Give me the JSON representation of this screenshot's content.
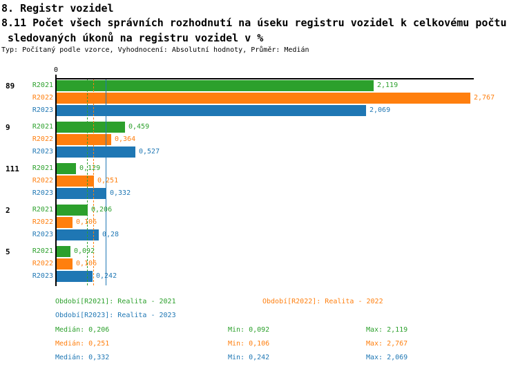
{
  "header": {
    "line1": "8. Registr vozidel",
    "line2": "8.11 Počet všech správních rozhodnutí na úseku registru vozidel k celkovému počtu",
    "line3": " sledovaných úkonů na registru vozidel v %",
    "meta": "Typ: Počítaný podle vzorce, Vyhodnocení: Absolutní hodnoty, Průměr: Medián"
  },
  "colors": {
    "green": "#2ca02c",
    "orange": "#ff7f0e",
    "blue": "#1f77b4",
    "axis": "#000000"
  },
  "chart_data": {
    "type": "bar",
    "orientation": "horizontal",
    "origin_tick_label": "0",
    "xlim": [
      0,
      2.8
    ],
    "grid": false,
    "categories": [
      "89",
      "9",
      "111",
      "2",
      "5"
    ],
    "series": [
      {
        "name": "R2021",
        "color": "#2ca02c",
        "dash": true,
        "values": [
          2.119,
          0.459,
          0.129,
          0.206,
          0.092
        ],
        "value_labels": [
          "2,119",
          "0,459",
          "0,129",
          "0,206",
          "0,092"
        ],
        "median": 0.206
      },
      {
        "name": "R2022",
        "color": "#ff7f0e",
        "dash": true,
        "values": [
          2.767,
          0.364,
          0.251,
          0.106,
          0.106
        ],
        "value_labels": [
          "2,767",
          "0,364",
          "0,251",
          "0,106",
          "0,106"
        ],
        "median": 0.251
      },
      {
        "name": "R2023",
        "color": "#1f77b4",
        "dash": false,
        "values": [
          2.069,
          0.527,
          0.332,
          0.28,
          0.242
        ],
        "value_labels": [
          "2,069",
          "0,527",
          "0,332",
          "0,28",
          "0,242"
        ],
        "median": 0.332
      }
    ]
  },
  "legend": {
    "r2021": "Období[R2021]: Realita - 2021",
    "r2022": "Období[R2022]: Realita - 2022",
    "r2023": "Období[R2023]: Realita - 2023"
  },
  "stats": {
    "rows": [
      {
        "color": "#2ca02c",
        "median": "Medián: 0,206",
        "min": "Min: 0,092",
        "max": "Max: 2,119"
      },
      {
        "color": "#ff7f0e",
        "median": "Medián: 0,251",
        "min": "Min: 0,106",
        "max": "Max: 2,767"
      },
      {
        "color": "#1f77b4",
        "median": "Medián: 0,332",
        "min": "Min: 0,242",
        "max": "Max: 2,069"
      }
    ]
  }
}
